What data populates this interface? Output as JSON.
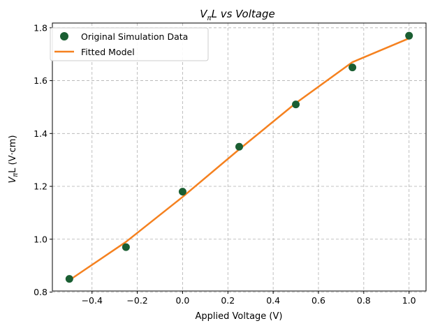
{
  "chart_data": {
    "type": "line",
    "title_main": "V",
    "title_sub": "π",
    "title_rest": "L vs Voltage",
    "xlabel": "Applied Voltage (V)",
    "ylabel_main": "V",
    "ylabel_sub": "π",
    "ylabel_rest": "L (V·cm)",
    "xlim": [
      -0.575,
      1.075
    ],
    "ylim": [
      0.804,
      1.818
    ],
    "xticks": [
      -0.4,
      -0.2,
      0.0,
      0.2,
      0.4,
      0.6,
      0.8,
      1.0
    ],
    "xtick_labels": [
      "−0.4",
      "−0.2",
      "0.0",
      "0.2",
      "0.4",
      "0.6",
      "0.8",
      "1.0"
    ],
    "yticks": [
      0.8,
      1.0,
      1.2,
      1.4,
      1.6,
      1.8
    ],
    "ytick_labels": [
      "0.8",
      "1.0",
      "1.2",
      "1.4",
      "1.6",
      "1.8"
    ],
    "grid": true,
    "legend_position": "top-left",
    "series": [
      {
        "name": "Original Simulation Data",
        "kind": "scatter",
        "color": "#1a5e32",
        "x": [
          -0.5,
          -0.25,
          0.0,
          0.25,
          0.5,
          0.75,
          1.0
        ],
        "y": [
          0.85,
          0.97,
          1.18,
          1.35,
          1.51,
          1.65,
          1.77
        ]
      },
      {
        "name": "Fitted Model",
        "kind": "line",
        "color": "#f5811f",
        "x": [
          -0.5,
          -0.25,
          0.0,
          0.25,
          0.5,
          0.75,
          1.0
        ],
        "y": [
          0.845,
          0.99,
          1.16,
          1.34,
          1.515,
          1.67,
          1.76
        ]
      }
    ]
  }
}
